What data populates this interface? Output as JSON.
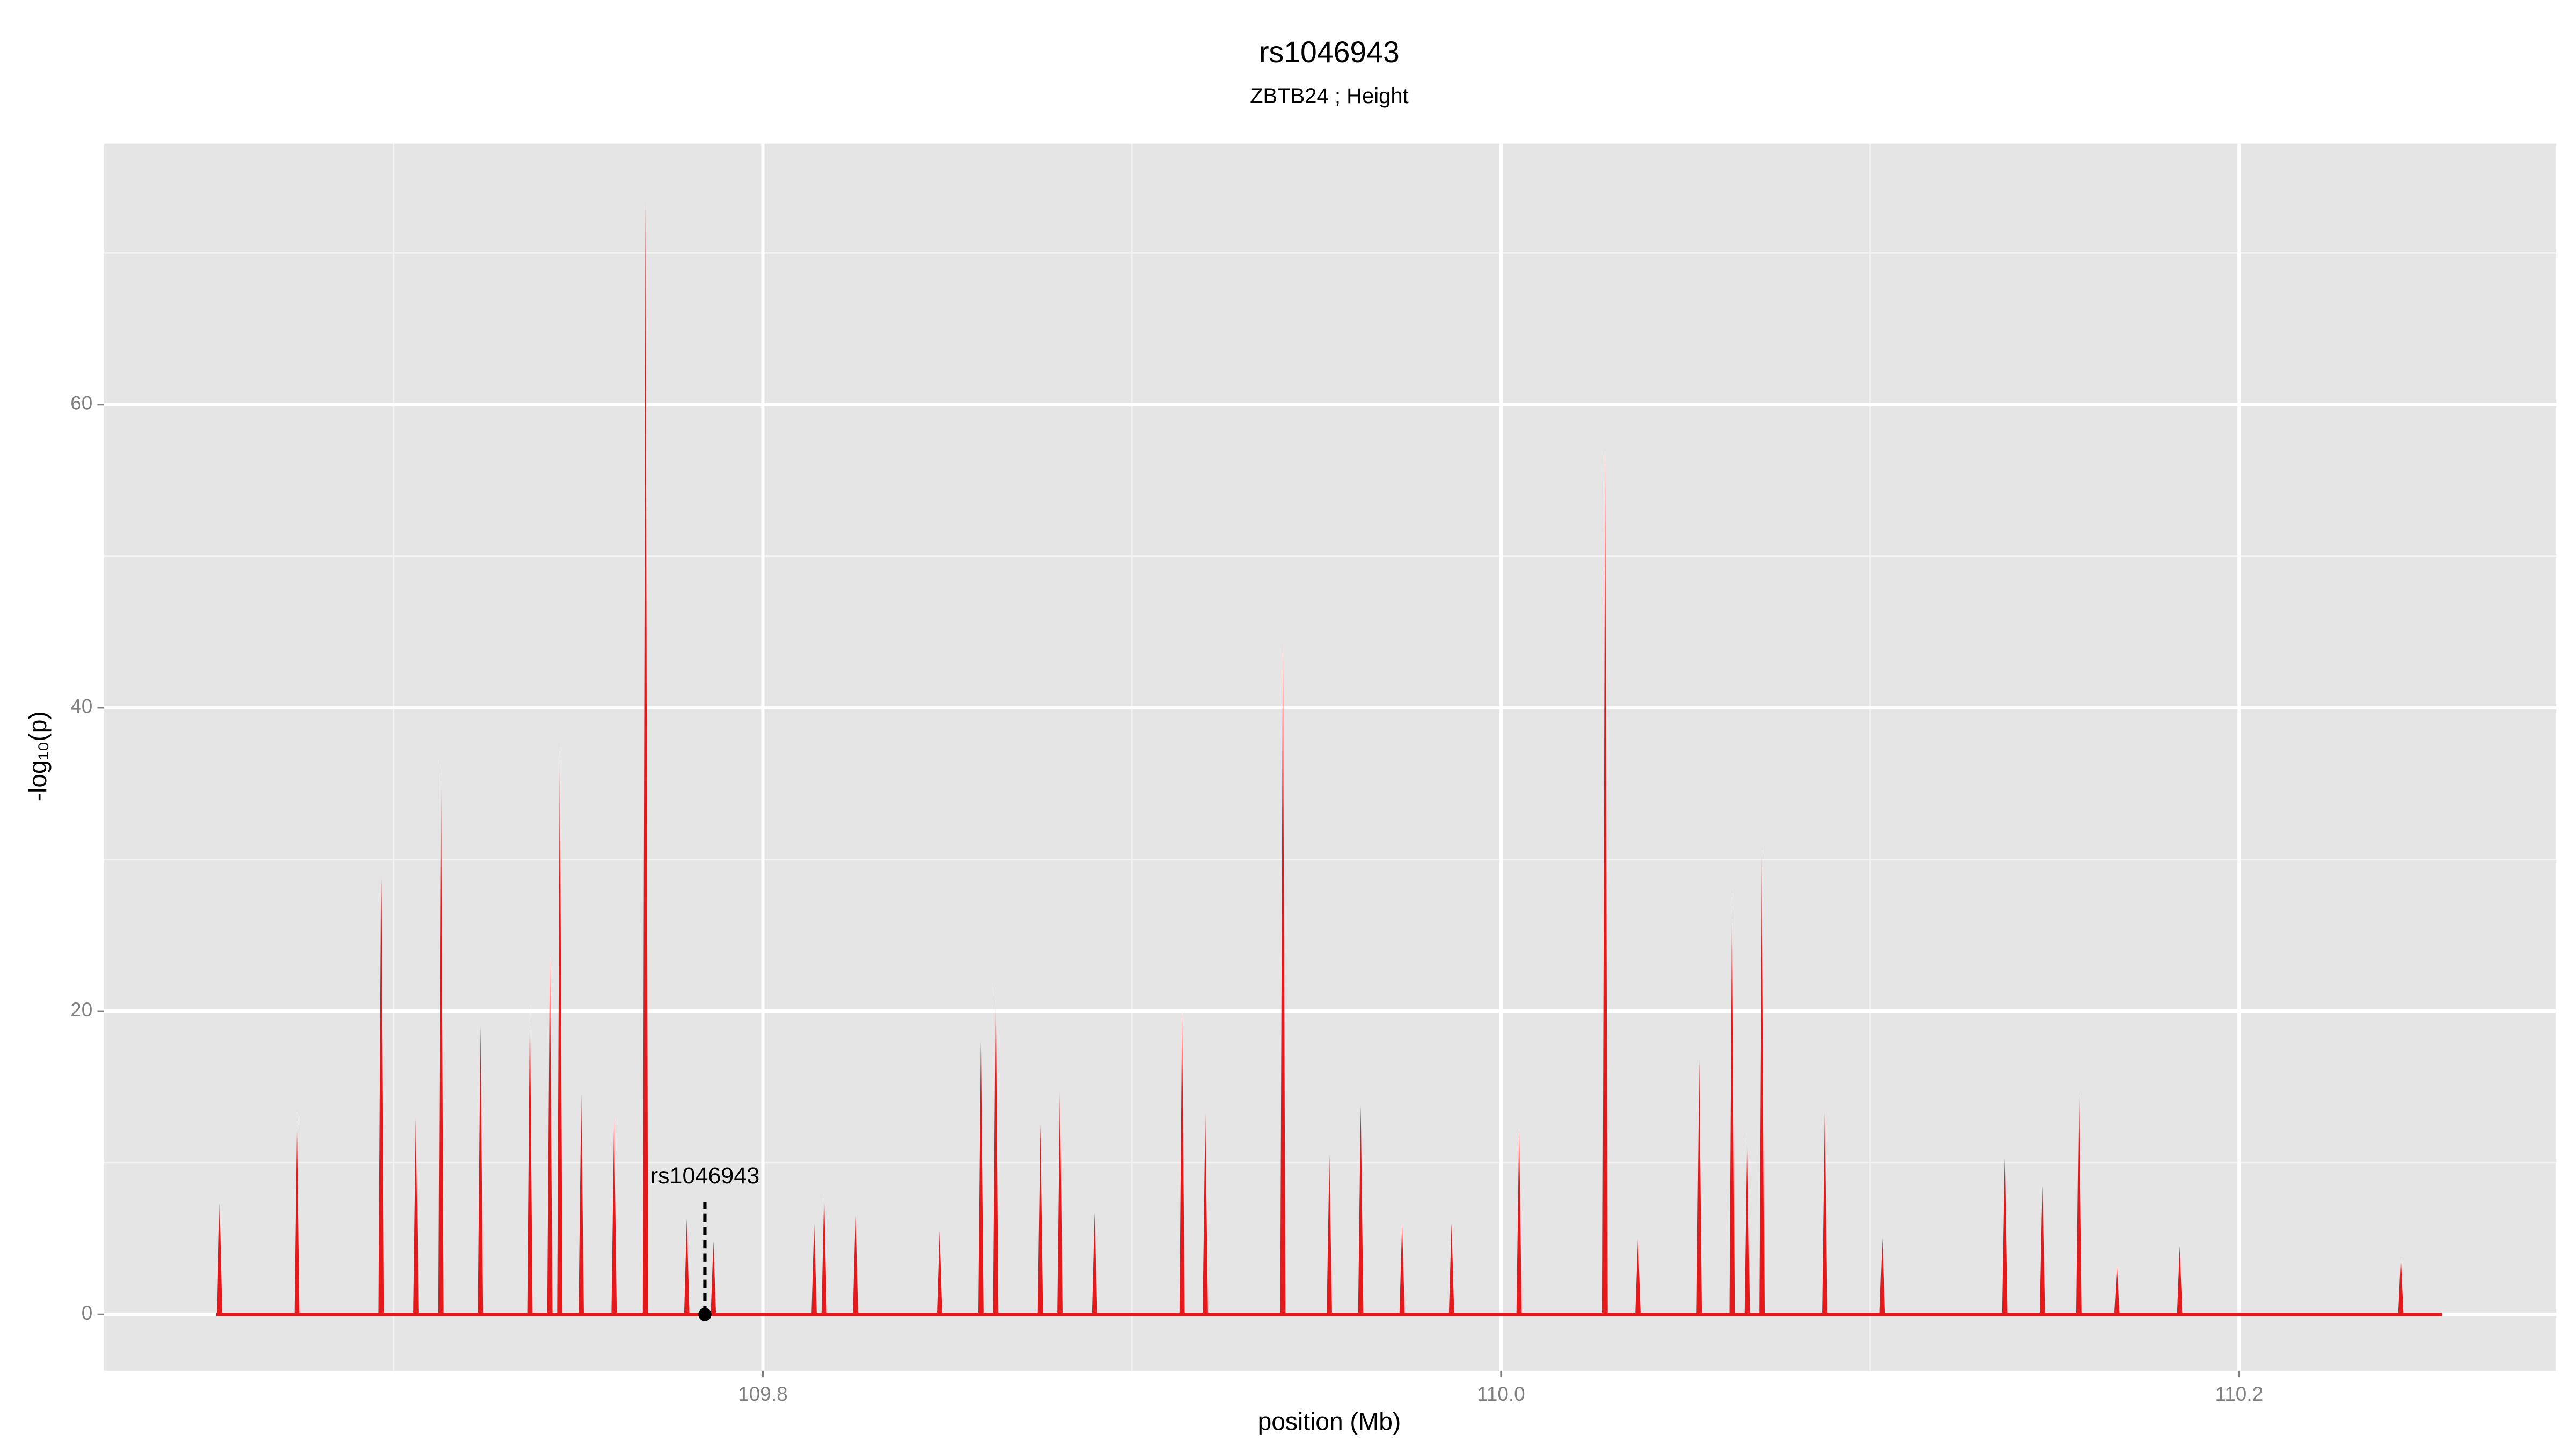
{
  "chart_data": {
    "type": "spike",
    "title": "rs1046943",
    "subtitle": "ZBTB24 ; Height",
    "x_label": "position (Mb)",
    "y_label": "-log₁₀(p)",
    "color": "#e3191c",
    "x": [
      109.6528,
      109.6738,
      109.6966,
      109.706,
      109.7128,
      109.7235,
      109.7369,
      109.7423,
      109.745,
      109.7508,
      109.7597,
      109.7682,
      109.7794,
      109.7866,
      109.8139,
      109.8166,
      109.8251,
      109.8479,
      109.8591,
      109.8631,
      109.8752,
      109.8805,
      109.8899,
      109.9136,
      109.9199,
      109.9409,
      109.9535,
      109.962,
      109.9732,
      109.9866,
      110.0049,
      110.0282,
      110.0371,
      110.0537,
      110.0626,
      110.0667,
      110.0707,
      110.0877,
      110.1033,
      110.1365,
      110.1467,
      110.1566,
      110.1669,
      110.1839,
      110.2438
    ],
    "values": [
      7.3,
      13.5,
      28.8,
      13,
      36.7,
      19,
      20.5,
      23.8,
      37.8,
      14.5,
      13,
      73.3,
      6.3,
      4.8,
      6,
      8,
      6.5,
      5.5,
      18,
      21.8,
      12.5,
      14.8,
      6.7,
      20,
      13.3,
      44.3,
      10.5,
      13.8,
      6,
      6,
      12.2,
      57.2,
      5,
      16.7,
      28,
      12,
      30.9,
      13.4,
      5,
      10.3,
      8.5,
      14.8,
      3.2,
      4.5,
      3.8
    ],
    "highlight": {
      "label": "rs1046943",
      "x": 109.7843,
      "value": 0
    },
    "xlim": [
      109.6215,
      110.2859
    ],
    "ylim": [
      -3.7,
      77.2
    ],
    "xticks": [
      109.8,
      {
        "value": 110,
        "label": "110.0"
      },
      110.2
    ],
    "yticks": [
      0,
      20,
      40,
      60
    ],
    "x_minor_grid": [
      109.7,
      109.9,
      110.1
    ],
    "y_minor_grid": [
      10,
      30,
      50,
      70
    ],
    "grid": true
  }
}
